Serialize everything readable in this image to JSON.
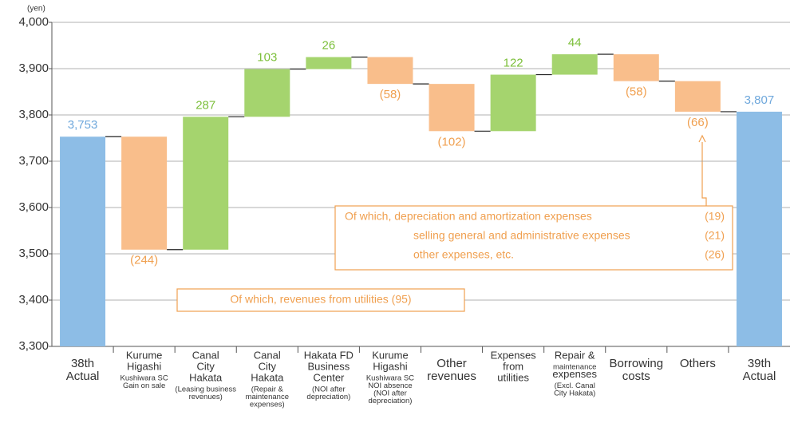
{
  "chart_data": {
    "type": "waterfall",
    "y_unit": "(yen)",
    "categories": [
      [
        "38th",
        "Actual"
      ],
      [
        "Kurume",
        "Higashi",
        "Kushiwara SC",
        "Gain on sale"
      ],
      [
        "Canal",
        "City",
        "Hakata",
        "(Leasing business",
        "revenues)"
      ],
      [
        "Canal",
        "City",
        "Hakata",
        "(Repair &",
        "maintenance",
        "expenses)"
      ],
      [
        "Hakata FD",
        "Business",
        "Center",
        "(NOI after",
        "depreciation)"
      ],
      [
        "Kurume",
        "Higashi",
        "Kushiwara SC",
        "NOI absence",
        "(NOI after",
        "depreciation)"
      ],
      [
        "Other",
        "revenues"
      ],
      [
        "Expenses",
        "from",
        "utilities"
      ],
      [
        "Repair &",
        "maintenance",
        "expenses",
        "(Excl. Canal",
        "City Hakata)"
      ],
      [
        "Borrowing",
        "costs"
      ],
      [
        "Others"
      ],
      [
        "39th",
        "Actual"
      ]
    ],
    "values": [
      3753,
      -244,
      287,
      103,
      26,
      -58,
      -102,
      122,
      44,
      -58,
      -66,
      3807
    ],
    "value_labels": [
      "3,753",
      "(244)",
      "287",
      "103",
      "26",
      "(58)",
      "(102)",
      "122",
      "44",
      "(58)",
      "(66)",
      "3,807"
    ],
    "totals": [
      0,
      11
    ],
    "colors": {
      "total": "#8dbde6",
      "increase": "#a5d46e",
      "decrease": "#f9be8b"
    },
    "label_colors": {
      "total": "#6fa8dc",
      "increase": "#7cbf3a",
      "decrease": "#f0a050"
    },
    "ylim": [
      3300,
      4000
    ],
    "yticks": [
      {
        "value": 3300,
        "label": "3,300"
      },
      {
        "value": 3400,
        "label": "3,400"
      },
      {
        "value": 3500,
        "label": "3,500"
      },
      {
        "value": 3600,
        "label": "3,600"
      },
      {
        "value": 3700,
        "label": "3,700"
      },
      {
        "value": 3800,
        "label": "3,800"
      },
      {
        "value": 3900,
        "label": "3,900"
      },
      {
        "value": 4000,
        "label": "4,000"
      }
    ],
    "grid": true,
    "annotations": [
      {
        "lines": [
          {
            "text": "Of which, depreciation and amortization expenses",
            "amount": "(19)"
          },
          {
            "text": "selling general and administrative expenses",
            "amount": "(21)"
          },
          {
            "text": "other expenses, etc.",
            "amount": "(26)"
          }
        ]
      },
      {
        "lines": [
          {
            "text": "Of which, revenues from utilities (95)"
          }
        ]
      }
    ]
  }
}
